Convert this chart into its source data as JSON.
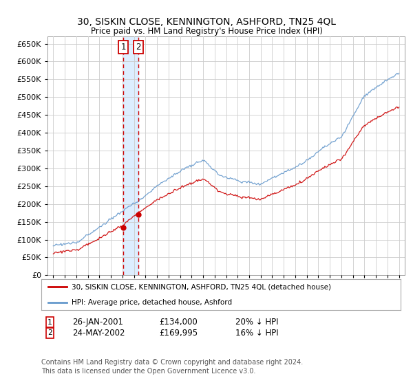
{
  "title": "30, SISKIN CLOSE, KENNINGTON, ASHFORD, TN25 4QL",
  "subtitle": "Price paid vs. HM Land Registry's House Price Index (HPI)",
  "legend_line1": "30, SISKIN CLOSE, KENNINGTON, ASHFORD, TN25 4QL (detached house)",
  "legend_line2": "HPI: Average price, detached house, Ashford",
  "transaction1_date": "26-JAN-2001",
  "transaction1_price": "£134,000",
  "transaction1_hpi": "20% ↓ HPI",
  "transaction1_year": 2001.07,
  "transaction1_value": 134000,
  "transaction2_date": "24-MAY-2002",
  "transaction2_price": "£169,995",
  "transaction2_hpi": "16% ↓ HPI",
  "transaction2_year": 2002.39,
  "transaction2_value": 169995,
  "red_color": "#cc0000",
  "blue_color": "#6699cc",
  "shade_color": "#ddeeff",
  "grid_color": "#cccccc",
  "footer_line1": "Contains HM Land Registry data © Crown copyright and database right 2024.",
  "footer_line2": "This data is licensed under the Open Government Licence v3.0.",
  "ylim_min": 0,
  "ylim_max": 670000,
  "xlim_min": 1994.5,
  "xlim_max": 2025.5
}
